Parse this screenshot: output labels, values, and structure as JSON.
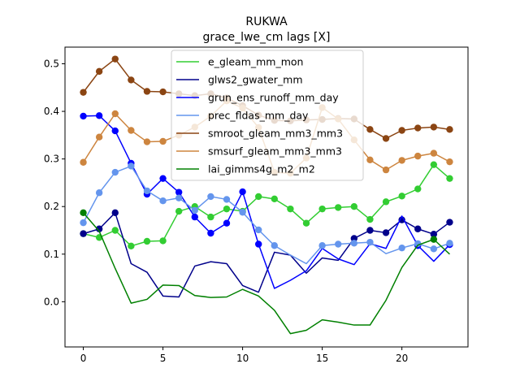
{
  "chart_data": {
    "type": "line",
    "title": "RUKWA",
    "subtitle": "grace_lwe_cm lags [X]",
    "xlabel": "",
    "ylabel": "",
    "xlim": [
      -1.15,
      24.15
    ],
    "ylim": [
      -0.095,
      0.535
    ],
    "xticks": [
      0,
      5,
      10,
      15,
      20
    ],
    "yticks": [
      0.0,
      0.1,
      0.2,
      0.3,
      0.4,
      0.5
    ],
    "ytick_labels": [
      "0.0",
      "0.1",
      "0.2",
      "0.3",
      "0.4",
      "0.5"
    ],
    "legend_position": "top-center",
    "x": [
      0,
      1,
      2,
      3,
      4,
      5,
      6,
      7,
      8,
      9,
      10,
      11,
      12,
      13,
      14,
      15,
      16,
      17,
      18,
      19,
      20,
      21,
      22,
      23
    ],
    "series": [
      {
        "name": "e_gleam_mm_mon",
        "color": "#32cd32",
        "values": [
          0.143,
          0.135,
          0.15,
          0.117,
          0.127,
          0.128,
          0.19,
          0.2,
          0.178,
          0.195,
          0.19,
          0.221,
          0.216,
          0.195,
          0.165,
          0.195,
          0.198,
          0.2,
          0.173,
          0.21,
          0.222,
          0.237,
          0.288,
          0.259
        ],
        "markers": [
          0,
          1,
          2,
          3,
          4,
          5,
          6,
          7,
          8,
          9,
          10,
          11,
          12,
          13,
          14,
          15,
          16,
          17,
          18,
          19,
          20,
          21,
          22,
          23
        ]
      },
      {
        "name": "glws2_gwater_mm",
        "color": "#00008b",
        "values": [
          0.143,
          0.153,
          0.187,
          0.08,
          0.062,
          0.012,
          0.01,
          0.075,
          0.084,
          0.08,
          0.034,
          0.02,
          0.104,
          0.098,
          0.06,
          0.092,
          0.087,
          0.133,
          0.15,
          0.145,
          0.172,
          0.153,
          0.142,
          0.167
        ],
        "markers": [
          0,
          1,
          2,
          17,
          18,
          19,
          20,
          21,
          22,
          23
        ]
      },
      {
        "name": "grun_ens_runoff_mm_day",
        "color": "#0000ff",
        "values": [
          0.39,
          0.391,
          0.359,
          0.291,
          0.226,
          0.259,
          0.23,
          0.178,
          0.144,
          0.165,
          0.231,
          0.121,
          0.028,
          0.045,
          0.065,
          0.112,
          0.09,
          0.078,
          0.122,
          0.112,
          0.18,
          0.118,
          0.085,
          0.12
        ],
        "markers": [
          0,
          1,
          2,
          3,
          4,
          5,
          6,
          7,
          8,
          9,
          10,
          11,
          21,
          23
        ]
      },
      {
        "name": "prec_fldas_mm_day",
        "color": "#6495ed",
        "values": [
          0.166,
          0.229,
          0.272,
          0.285,
          0.233,
          0.212,
          0.218,
          0.192,
          0.221,
          0.215,
          0.188,
          0.151,
          0.118,
          0.098,
          0.08,
          0.118,
          0.121,
          0.123,
          0.125,
          0.101,
          0.113,
          0.122,
          0.111,
          0.123
        ],
        "markers": [
          0,
          1,
          2,
          3,
          4,
          5,
          6,
          7,
          8,
          9,
          10,
          11,
          12,
          15,
          16,
          17,
          18,
          20,
          21,
          22,
          23
        ]
      },
      {
        "name": "smroot_gleam_mm3_mm3",
        "color": "#8b4513",
        "values": [
          0.44,
          0.484,
          0.51,
          0.466,
          0.442,
          0.441,
          0.437,
          0.433,
          0.437,
          0.428,
          0.412,
          0.392,
          0.381,
          0.38,
          0.382,
          0.383,
          0.385,
          0.384,
          0.362,
          0.343,
          0.36,
          0.365,
          0.367,
          0.362
        ],
        "markers": [
          0,
          1,
          2,
          3,
          4,
          5,
          6,
          7,
          8,
          9,
          10,
          11,
          12,
          13,
          14,
          15,
          16,
          17,
          18,
          19,
          20,
          21,
          22,
          23
        ]
      },
      {
        "name": "smsurf_gleam_mm3_mm3",
        "color": "#cd853f",
        "values": [
          0.293,
          0.346,
          0.395,
          0.36,
          0.336,
          0.337,
          0.35,
          0.367,
          0.39,
          0.422,
          0.407,
          0.366,
          0.272,
          0.27,
          0.302,
          0.408,
          0.384,
          0.34,
          0.298,
          0.277,
          0.297,
          0.306,
          0.312,
          0.294
        ],
        "markers": [
          0,
          1,
          2,
          3,
          4,
          5,
          6,
          7,
          8,
          9,
          10,
          11,
          12,
          13,
          14,
          15,
          16,
          17,
          18,
          19,
          20,
          21,
          22,
          23
        ]
      },
      {
        "name": "lai_gimms4g_m2_m2",
        "color": "#008000",
        "values": [
          0.187,
          0.148,
          0.07,
          -0.003,
          0.005,
          0.035,
          0.034,
          0.013,
          0.009,
          0.01,
          0.026,
          0.012,
          -0.018,
          -0.067,
          -0.06,
          -0.038,
          -0.043,
          -0.049,
          -0.049,
          0.003,
          0.072,
          0.119,
          0.131,
          0.1
        ],
        "markers": [
          0,
          22
        ]
      }
    ]
  }
}
